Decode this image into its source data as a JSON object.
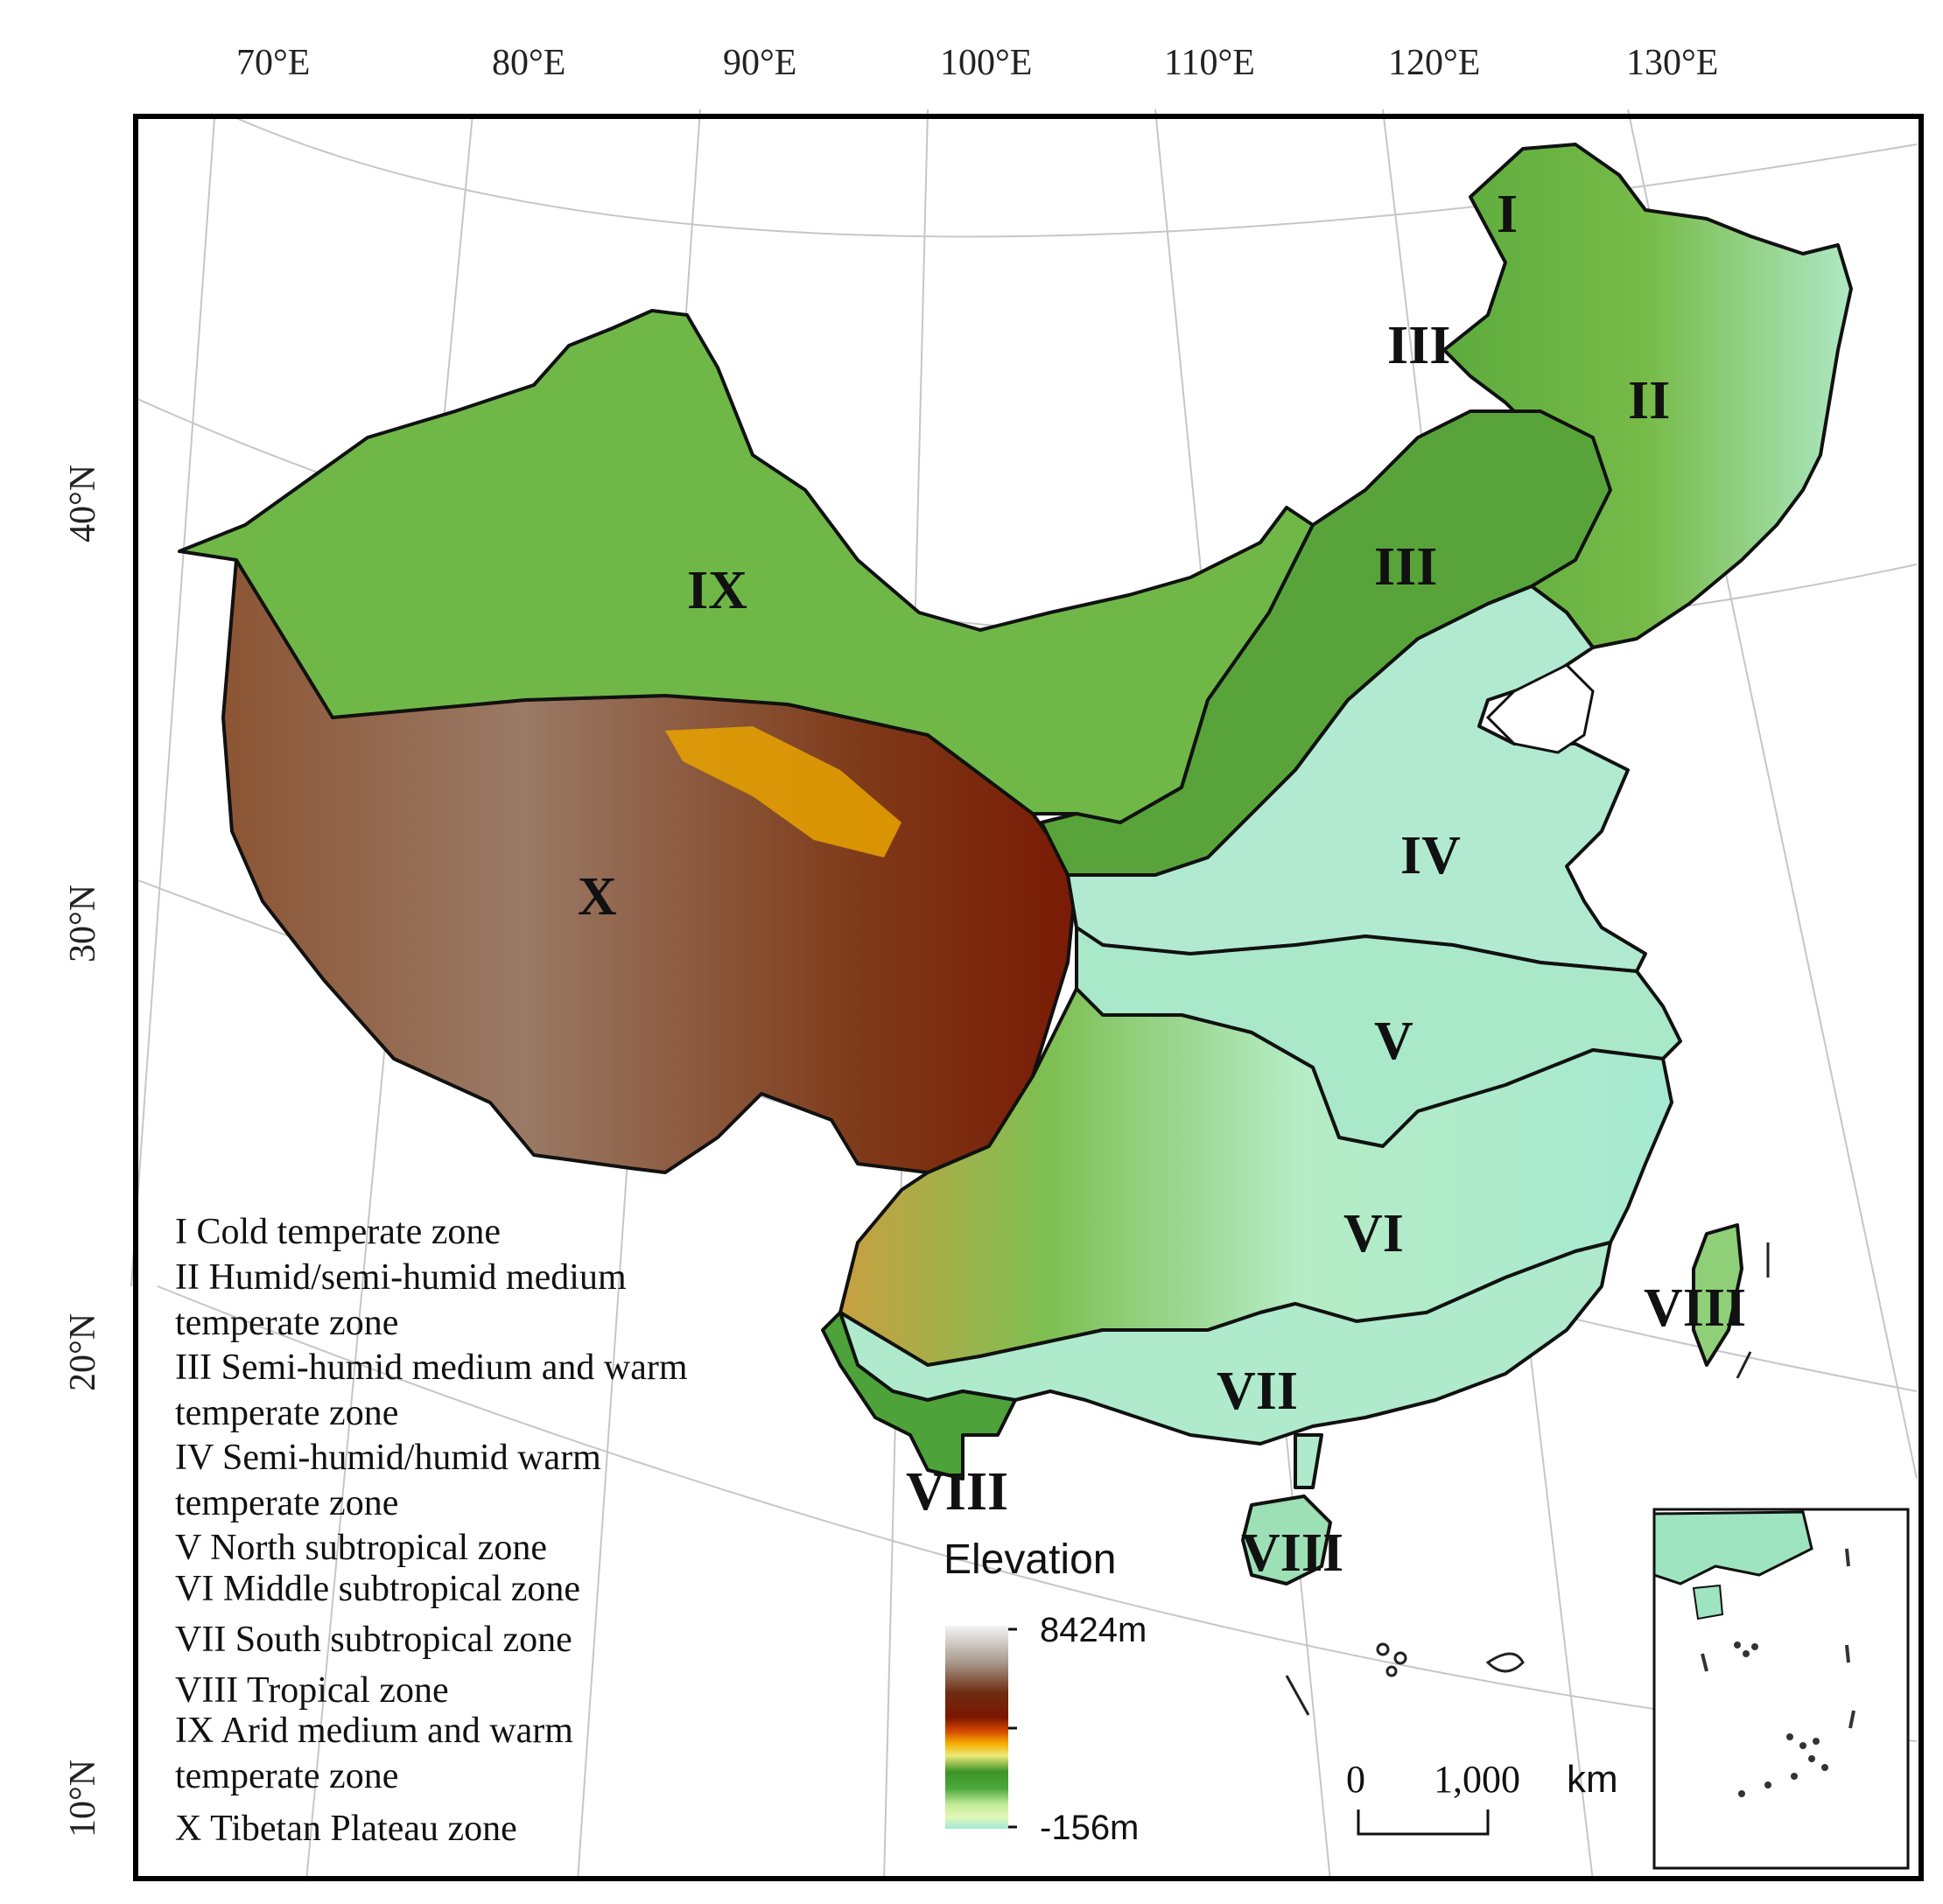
{
  "longitude_ticks": [
    "70°E",
    "80°E",
    "90°E",
    "100°E",
    "110°E",
    "120°E",
    "130°E"
  ],
  "latitude_ticks": [
    "40°N",
    "30°N",
    "20°N",
    "10°N"
  ],
  "zone_labels": {
    "I": "I",
    "II": "II",
    "III_a": "III",
    "III_b": "III",
    "IV": "IV",
    "V": "V",
    "VI": "VI",
    "VII": "VII",
    "VIII_a": "VIII",
    "VIII_b": "VIII",
    "VIII_c": "VIII",
    "IX": "IX",
    "X": "X"
  },
  "legend": [
    "I  Cold temperate zone",
    "II  Humid/semi-humid medium\ntemperate zone",
    "III  Semi-humid medium and warm\ntemperate zone",
    "IV  Semi-humid/humid warm\ntemperate zone",
    "V  North subtropical zone",
    "VI  Middle subtropical zone",
    "VII  South subtropical zone",
    "VIII  Tropical zone",
    "IX  Arid medium and warm\ntemperate zone",
    "X  Tibetan Plateau zone"
  ],
  "elevation": {
    "title": "Elevation",
    "max_label": "8424m",
    "min_label": "-156m",
    "colors": [
      "#f2f2f2",
      "#9a8a7c",
      "#6b2a10",
      "#7a1800",
      "#d24a00",
      "#f5a800",
      "#e0e070",
      "#3f9a2a",
      "#4aa838",
      "#b8e890",
      "#dff6b0",
      "#9fe8d8"
    ]
  },
  "scale_bar": {
    "zero": "0",
    "distance": "1,000",
    "unit": "km"
  },
  "colors": {
    "tibet": "#8a4f2e",
    "lowland": "#aeeacb",
    "green": "#56a83c",
    "yellow": "#f1efa0",
    "high": "#7a1a05"
  }
}
